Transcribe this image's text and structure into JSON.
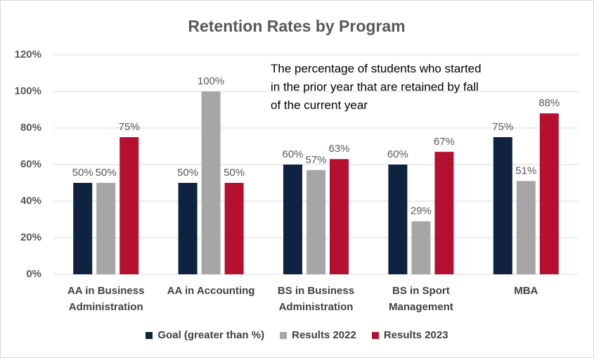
{
  "chart_data": {
    "type": "bar",
    "title": "Retention Rates by Program",
    "annotation": "The percentage of students who started in the prior year that are retained by fall of the current year",
    "categories": [
      "AA in Business Administration",
      "AA in Accounting",
      "BS in Business Administration",
      "BS in Sport Management",
      "MBA"
    ],
    "series": [
      {
        "name": "Goal (greater than %)",
        "color": "#0f2240",
        "values": [
          50,
          50,
          60,
          60,
          75
        ],
        "value_labels": [
          "50%",
          "50%",
          "60%",
          "60%",
          "75%"
        ]
      },
      {
        "name": "Results 2022",
        "color": "#a6a6a6",
        "values": [
          50,
          100,
          57,
          29,
          51
        ],
        "value_labels": [
          "50%",
          "100%",
          "57%",
          "29%",
          "51%"
        ]
      },
      {
        "name": "Results 2023",
        "color": "#b5102f",
        "values": [
          75,
          50,
          63,
          67,
          88
        ],
        "value_labels": [
          "75%",
          "50%",
          "63%",
          "67%",
          "88%"
        ]
      }
    ],
    "ylim": [
      0,
      120
    ],
    "yticks": [
      {
        "value": 0,
        "label": "0%"
      },
      {
        "value": 20,
        "label": "20%"
      },
      {
        "value": 40,
        "label": "40%"
      },
      {
        "value": 60,
        "label": "60%"
      },
      {
        "value": 80,
        "label": "80%"
      },
      {
        "value": 100,
        "label": "100%"
      },
      {
        "value": 120,
        "label": "120%"
      }
    ],
    "grid": true,
    "legend": "bottom"
  }
}
